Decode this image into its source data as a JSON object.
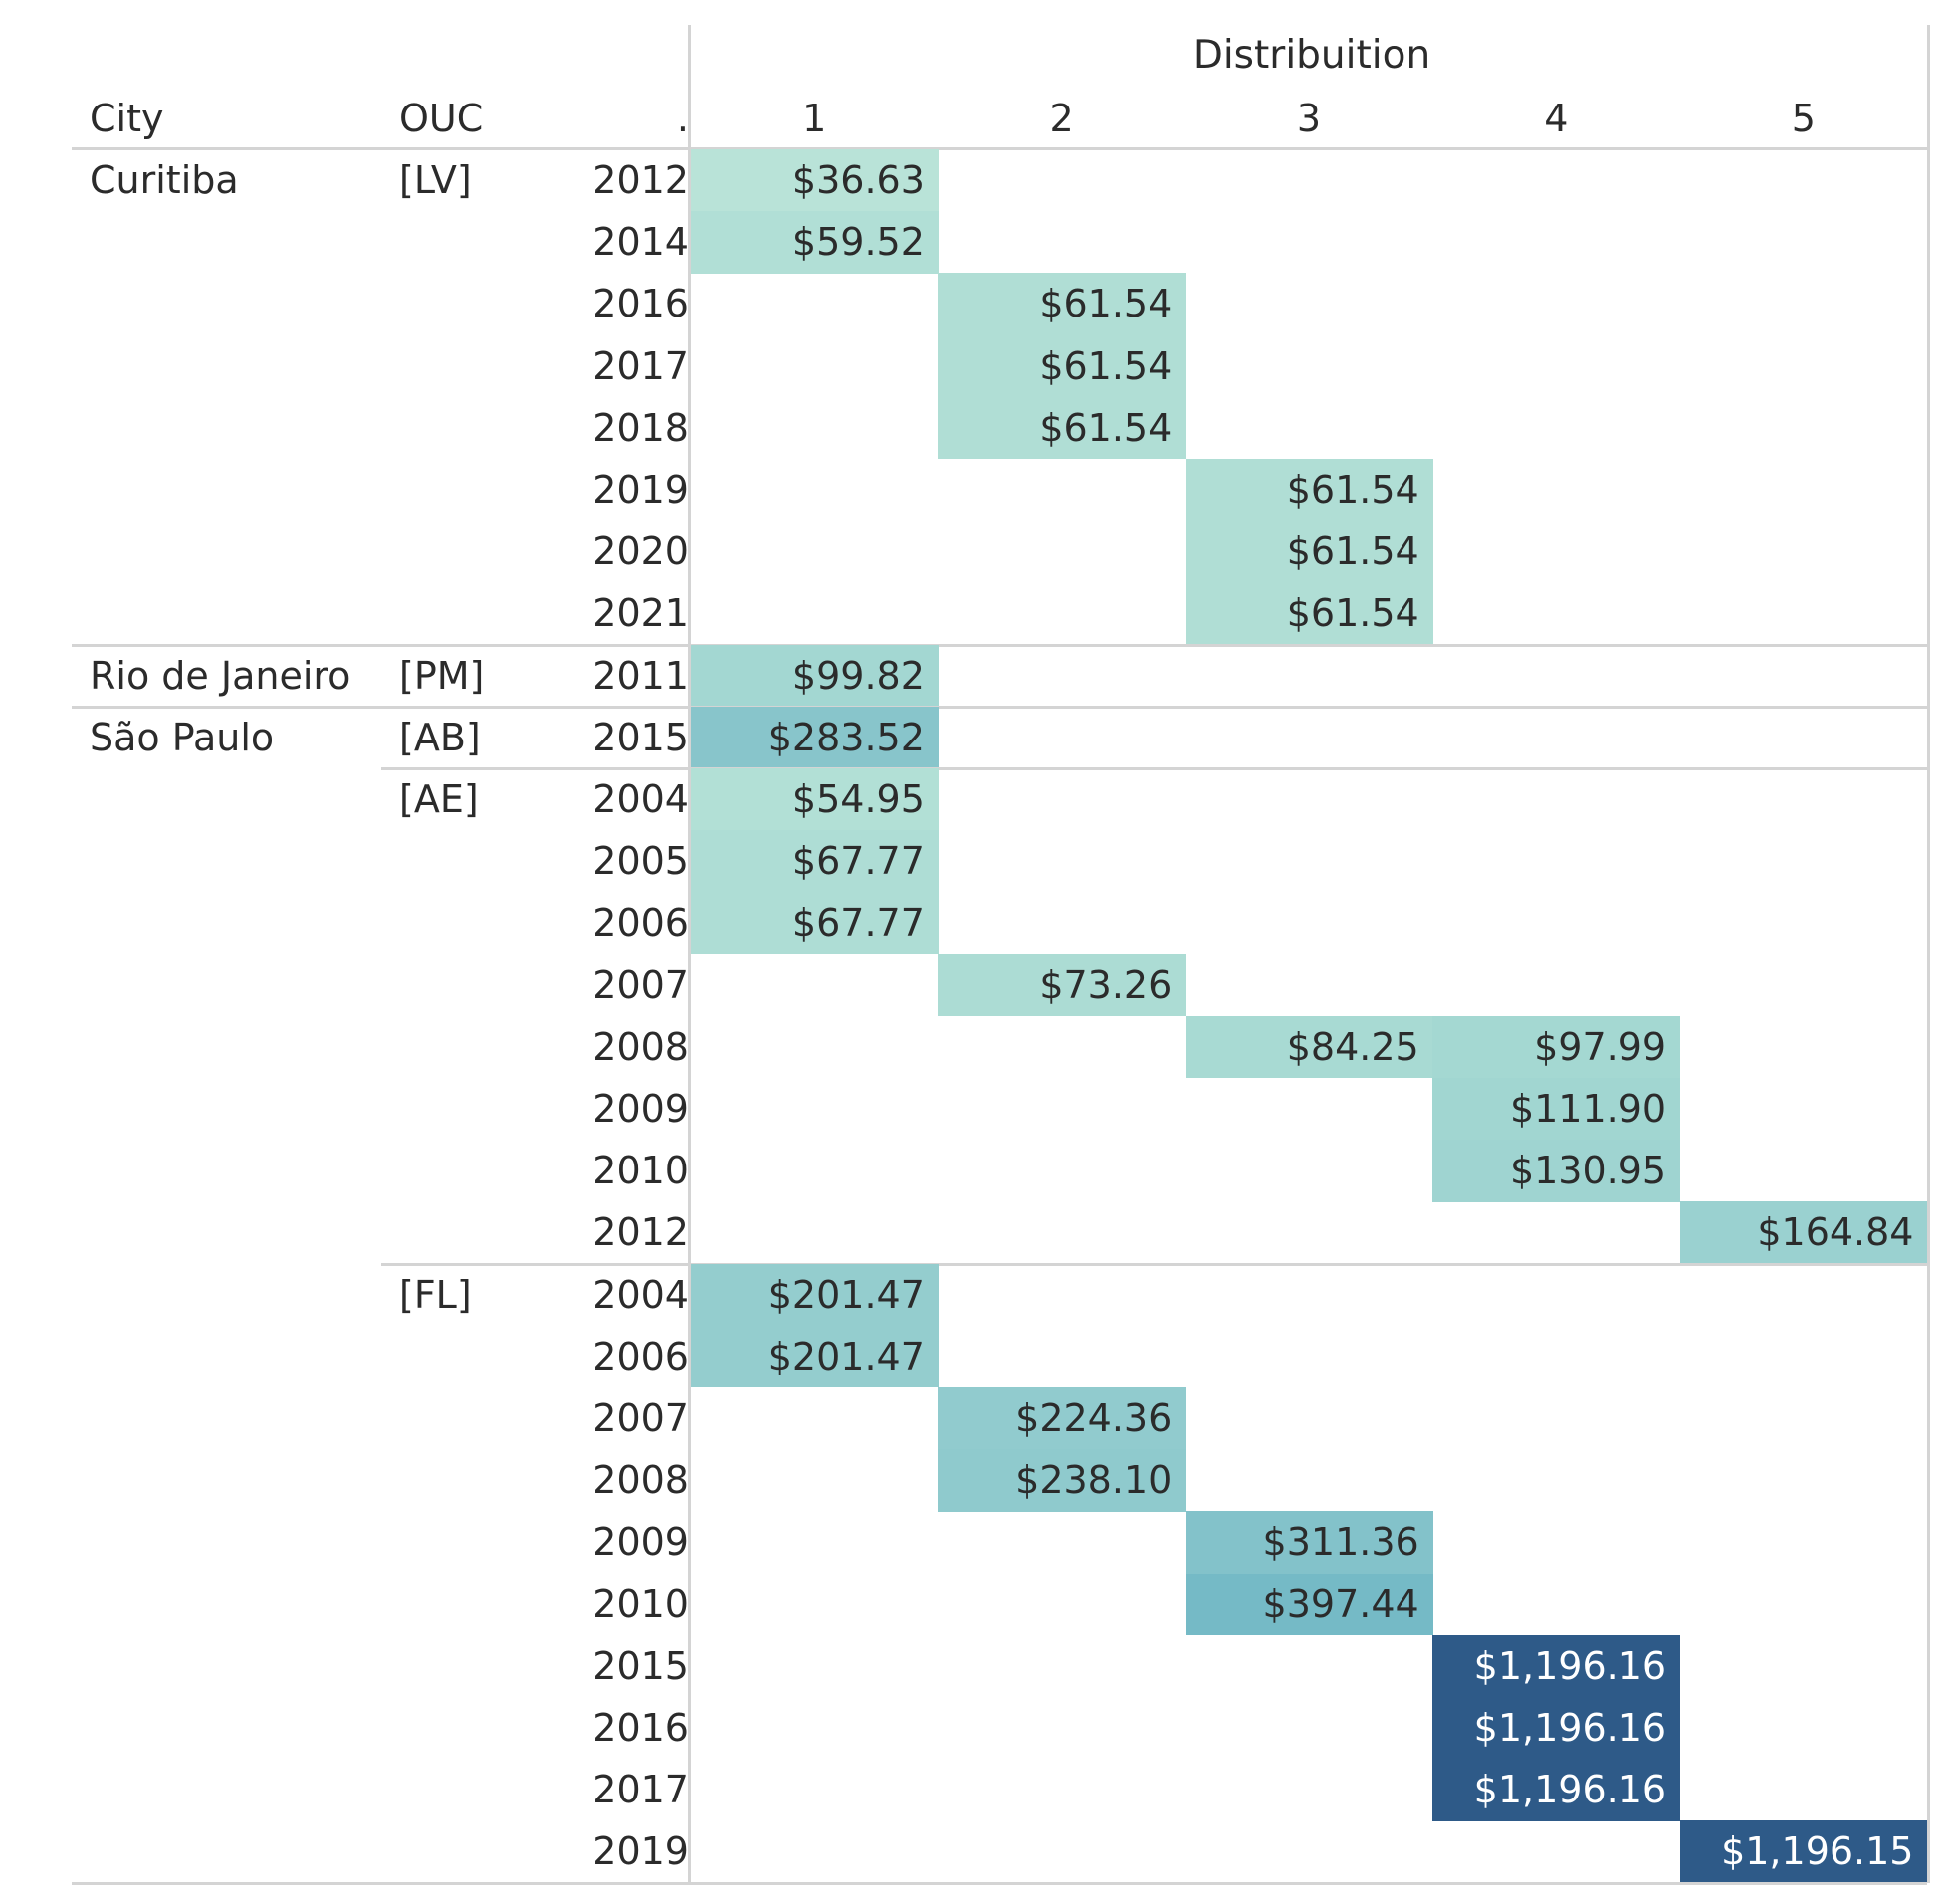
{
  "chart_data": {
    "type": "table",
    "column_group_header": "Distribuition",
    "row_headers": [
      "City",
      "OUC",
      "."
    ],
    "columns": [
      "1",
      "2",
      "3",
      "4",
      "5"
    ],
    "colors": {
      "scale": [
        "#b9e3d8",
        "#a4d8d2",
        "#8ec9cd",
        "#73b9c6",
        "#2e5a88"
      ],
      "light_text": "#ffffff",
      "dark_text": "#2b2b2b",
      "grid": "#d4d4d4"
    },
    "groups": [
      {
        "city": "Curitiba",
        "ouc": "[LV]",
        "rows": [
          {
            "year": "2012",
            "cells": [
              {
                "col": 1,
                "label": "$36.63",
                "value": 36.63
              }
            ]
          },
          {
            "year": "2014",
            "cells": [
              {
                "col": 1,
                "label": "$59.52",
                "value": 59.52
              }
            ]
          },
          {
            "year": "2016",
            "cells": [
              {
                "col": 2,
                "label": "$61.54",
                "value": 61.54
              }
            ]
          },
          {
            "year": "2017",
            "cells": [
              {
                "col": 2,
                "label": "$61.54",
                "value": 61.54
              }
            ]
          },
          {
            "year": "2018",
            "cells": [
              {
                "col": 2,
                "label": "$61.54",
                "value": 61.54
              }
            ]
          },
          {
            "year": "2019",
            "cells": [
              {
                "col": 3,
                "label": "$61.54",
                "value": 61.54
              }
            ]
          },
          {
            "year": "2020",
            "cells": [
              {
                "col": 3,
                "label": "$61.54",
                "value": 61.54
              }
            ]
          },
          {
            "year": "2021",
            "cells": [
              {
                "col": 3,
                "label": "$61.54",
                "value": 61.54
              }
            ]
          }
        ]
      },
      {
        "city": "Rio de Janeiro",
        "ouc": "[PM]",
        "rows": [
          {
            "year": "2011",
            "cells": [
              {
                "col": 1,
                "label": "$99.82",
                "value": 99.82
              }
            ]
          }
        ]
      },
      {
        "city": "São Paulo",
        "ouc": "[AB]",
        "rows": [
          {
            "year": "2015",
            "cells": [
              {
                "col": 1,
                "label": "$283.52",
                "value": 283.52
              }
            ]
          }
        ]
      },
      {
        "city": "",
        "ouc": "[AE]",
        "rows": [
          {
            "year": "2004",
            "cells": [
              {
                "col": 1,
                "label": "$54.95",
                "value": 54.95
              }
            ]
          },
          {
            "year": "2005",
            "cells": [
              {
                "col": 1,
                "label": "$67.77",
                "value": 67.77
              }
            ]
          },
          {
            "year": "2006",
            "cells": [
              {
                "col": 1,
                "label": "$67.77",
                "value": 67.77
              }
            ]
          },
          {
            "year": "2007",
            "cells": [
              {
                "col": 2,
                "label": "$73.26",
                "value": 73.26
              }
            ]
          },
          {
            "year": "2008",
            "cells": [
              {
                "col": 3,
                "label": "$84.25",
                "value": 84.25
              },
              {
                "col": 4,
                "label": "$97.99",
                "value": 97.99
              }
            ]
          },
          {
            "year": "2009",
            "cells": [
              {
                "col": 4,
                "label": "$111.90",
                "value": 111.9
              }
            ]
          },
          {
            "year": "2010",
            "cells": [
              {
                "col": 4,
                "label": "$130.95",
                "value": 130.95
              }
            ]
          },
          {
            "year": "2012",
            "cells": [
              {
                "col": 5,
                "label": "$164.84",
                "value": 164.84
              }
            ]
          }
        ]
      },
      {
        "city": "",
        "ouc": "[FL]",
        "rows": [
          {
            "year": "2004",
            "cells": [
              {
                "col": 1,
                "label": "$201.47",
                "value": 201.47
              }
            ]
          },
          {
            "year": "2006",
            "cells": [
              {
                "col": 1,
                "label": "$201.47",
                "value": 201.47
              }
            ]
          },
          {
            "year": "2007",
            "cells": [
              {
                "col": 2,
                "label": "$224.36",
                "value": 224.36
              }
            ]
          },
          {
            "year": "2008",
            "cells": [
              {
                "col": 2,
                "label": "$238.10",
                "value": 238.1
              }
            ]
          },
          {
            "year": "2009",
            "cells": [
              {
                "col": 3,
                "label": "$311.36",
                "value": 311.36
              }
            ]
          },
          {
            "year": "2010",
            "cells": [
              {
                "col": 3,
                "label": "$397.44",
                "value": 397.44
              }
            ]
          },
          {
            "year": "2015",
            "cells": [
              {
                "col": 4,
                "label": "$1,196.16",
                "value": 1196.16
              }
            ]
          },
          {
            "year": "2016",
            "cells": [
              {
                "col": 4,
                "label": "$1,196.16",
                "value": 1196.16
              }
            ]
          },
          {
            "year": "2017",
            "cells": [
              {
                "col": 4,
                "label": "$1,196.16",
                "value": 1196.16
              }
            ]
          },
          {
            "year": "2019",
            "cells": [
              {
                "col": 5,
                "label": "$1,196.15",
                "value": 1196.15
              }
            ]
          }
        ]
      }
    ]
  }
}
